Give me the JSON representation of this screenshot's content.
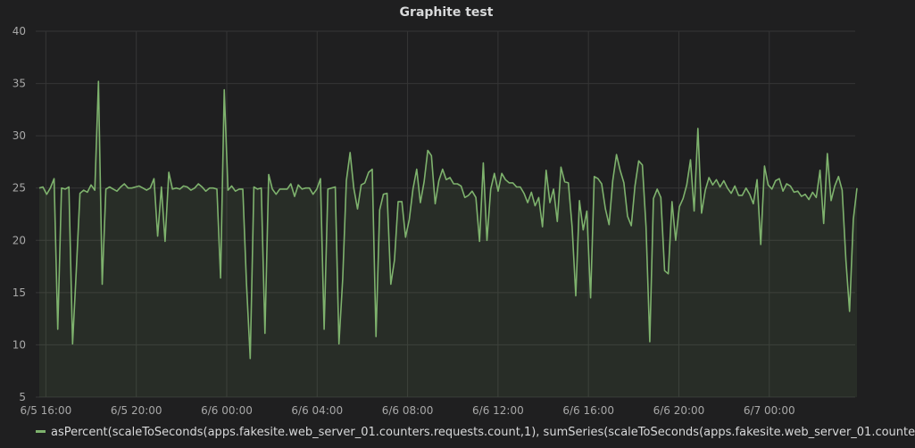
{
  "colors": {
    "series": "#7eb26d",
    "grid": "#363636",
    "background": "#1f1f20"
  },
  "chart_data": {
    "type": "area",
    "title": "Graphite test",
    "ylim": [
      5,
      40
    ],
    "y_ticks": [
      "40",
      "35",
      "30",
      "25",
      "20",
      "15",
      "10",
      "5"
    ],
    "x_ticks": [
      "6/5 16:00",
      "6/5 20:00",
      "6/6 00:00",
      "6/6 04:00",
      "6/6 08:00",
      "6/6 12:00",
      "6/6 16:00",
      "6/6 20:00",
      "6/7 00:00"
    ],
    "x_range": [
      "6/5 15:33",
      "6/7 03:48"
    ],
    "grid": true,
    "legend_position": "bottom",
    "series": [
      {
        "name": "asPercent(scaleToSeconds(apps.fakesite.web_server_01.counters.requests.count,1), sumSeries(scaleToSeconds(apps.fakesite.web_server_01.counte",
        "values": [
          25.0,
          25.1,
          24.4,
          25.0,
          25.9,
          11.5,
          25.0,
          24.9,
          25.1,
          10.1,
          17.0,
          24.5,
          24.8,
          24.6,
          25.3,
          24.8,
          35.2,
          15.8,
          24.9,
          25.1,
          24.9,
          24.7,
          25.1,
          25.4,
          25.0,
          25.0,
          25.1,
          25.2,
          25.0,
          24.8,
          25.0,
          25.9,
          20.4,
          25.1,
          19.9,
          26.5,
          24.9,
          25.0,
          24.9,
          25.2,
          25.1,
          24.8,
          25.0,
          25.4,
          25.1,
          24.7,
          25.0,
          25.0,
          24.9,
          16.4,
          34.4,
          24.8,
          25.2,
          24.7,
          24.9,
          24.9,
          15.9,
          8.7,
          25.1,
          24.9,
          25.0,
          11.1,
          26.3,
          24.9,
          24.4,
          24.9,
          24.9,
          24.9,
          25.4,
          24.2,
          25.3,
          24.9,
          25.0,
          25.0,
          24.4,
          24.9,
          25.9,
          11.5,
          24.9,
          25.0,
          25.1,
          10.1,
          16.3,
          25.7,
          28.4,
          25.0,
          23.0,
          25.3,
          25.5,
          26.5,
          26.8,
          10.8,
          22.9,
          24.4,
          24.5,
          15.8,
          18.1,
          23.7,
          23.7,
          20.3,
          22.0,
          24.9,
          26.8,
          23.6,
          25.6,
          28.6,
          28.1,
          23.5,
          25.7,
          26.8,
          25.8,
          26.0,
          25.4,
          25.4,
          25.2,
          24.1,
          24.3,
          24.7,
          24.1,
          19.9,
          27.4,
          20.0,
          24.9,
          26.4,
          24.7,
          26.4,
          25.8,
          25.5,
          25.5,
          25.1,
          25.1,
          24.5,
          23.6,
          24.6,
          23.3,
          24.1,
          21.3,
          26.7,
          23.6,
          24.9,
          21.8,
          27.0,
          25.6,
          25.5,
          21.3,
          14.7,
          23.8,
          21.0,
          22.8,
          14.5,
          26.1,
          25.9,
          25.4,
          23.0,
          21.5,
          25.7,
          28.2,
          26.7,
          25.5,
          22.3,
          21.4,
          25.2,
          27.6,
          27.2,
          21.3,
          10.3,
          24.0,
          24.9,
          24.1,
          17.1,
          16.8,
          23.7,
          20.0,
          23.2,
          24.0,
          25.3,
          27.7,
          22.8,
          30.7,
          22.6,
          24.8,
          26.0,
          25.3,
          25.8,
          25.1,
          25.7,
          25.0,
          24.5,
          25.2,
          24.3,
          24.3,
          25.0,
          24.4,
          23.5,
          25.8,
          19.6,
          27.1,
          25.3,
          24.9,
          25.7,
          25.9,
          24.7,
          25.4,
          25.2,
          24.6,
          24.7,
          24.2,
          24.4,
          23.9,
          24.6,
          24.1,
          26.7,
          21.6,
          28.3,
          23.8,
          25.2,
          26.1,
          24.8,
          18.1,
          13.2,
          22.0,
          25.0
        ]
      }
    ]
  }
}
